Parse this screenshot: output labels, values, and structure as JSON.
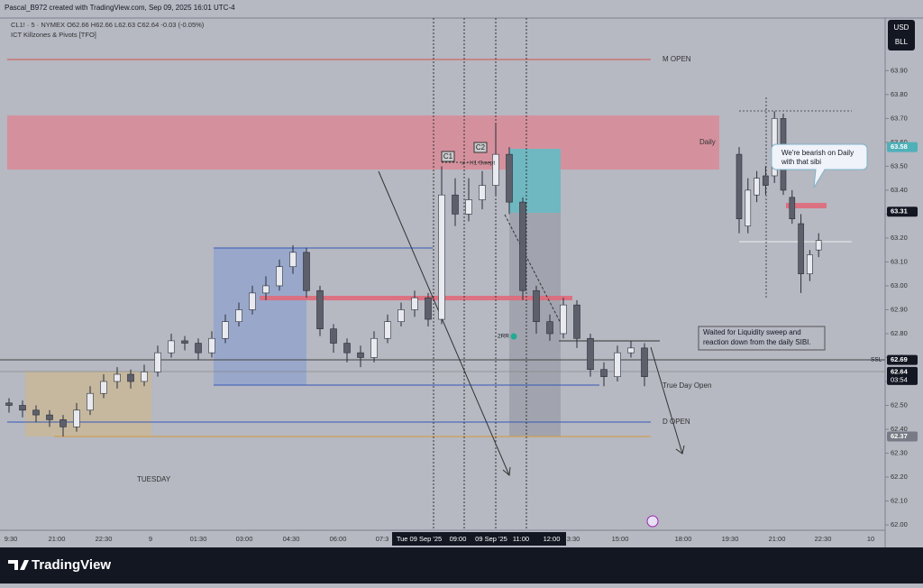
{
  "header": {
    "credit": "Pascal_B972 created with TradingView.com, Sep 09, 2025 16:01 UTC-4",
    "legend": "CL1! · 5 · NYMEX  O62.66 H62.66 L62.63 C62.64 -0.03 (-0.05%)",
    "indicator": "ICT Killzones & Pivots [TFO]"
  },
  "currency": [
    "USD",
    "BLL"
  ],
  "footer": "TradingView",
  "chart_data": {
    "type": "candlestick",
    "ylim": [
      61.97,
      64.12
    ],
    "yticks": [
      {
        "value": 62.0,
        "label": "62.00"
      },
      {
        "value": 62.1,
        "label": "62.10"
      },
      {
        "value": 62.2,
        "label": "62.20"
      },
      {
        "value": 62.3,
        "label": "62.30"
      },
      {
        "value": 62.4,
        "label": "62.40"
      },
      {
        "value": 62.5,
        "label": "62.50"
      },
      {
        "value": 62.6,
        "label": "62.60"
      },
      {
        "value": 62.7,
        "label": "62.70"
      },
      {
        "value": 62.8,
        "label": "62.80"
      },
      {
        "value": 62.9,
        "label": "62.90"
      },
      {
        "value": 63.0,
        "label": "63.00"
      },
      {
        "value": 63.1,
        "label": "63.10"
      },
      {
        "value": 63.2,
        "label": "63.20"
      },
      {
        "value": 63.3,
        "label": "63.30"
      },
      {
        "value": 63.4,
        "label": "63.40"
      },
      {
        "value": 63.5,
        "label": "63.50"
      },
      {
        "value": 63.6,
        "label": "63.60"
      },
      {
        "value": 63.7,
        "label": "63.70"
      },
      {
        "value": 63.8,
        "label": "63.80"
      },
      {
        "value": 63.9,
        "label": "63.90"
      }
    ],
    "x_labels": [
      "9:30",
      "21:00",
      "22:30",
      "9",
      "01:30",
      "03:00",
      "04:30",
      "06:00",
      "07:3",
      "3:30",
      "15:00",
      "18:00",
      "19:30",
      "21:00",
      "22:30",
      "10"
    ],
    "x_cursor": [
      "Tue 09 Sep '25",
      "09:00",
      "09 Sep '25",
      "11:00",
      "12:00"
    ],
    "candles": [
      [
        62.51,
        62.53,
        62.47,
        62.5
      ],
      [
        62.5,
        62.52,
        62.45,
        62.48
      ],
      [
        62.48,
        62.5,
        62.43,
        62.46
      ],
      [
        62.46,
        62.48,
        62.41,
        62.44
      ],
      [
        62.44,
        62.46,
        62.37,
        62.41
      ],
      [
        62.41,
        62.51,
        62.39,
        62.48
      ],
      [
        62.48,
        62.58,
        62.46,
        62.55
      ],
      [
        62.55,
        62.63,
        62.53,
        62.6
      ],
      [
        62.6,
        62.66,
        62.57,
        62.63
      ],
      [
        62.63,
        62.65,
        62.57,
        62.6
      ],
      [
        62.6,
        62.67,
        62.58,
        62.64
      ],
      [
        62.64,
        62.75,
        62.62,
        62.72
      ],
      [
        62.72,
        62.8,
        62.7,
        62.77
      ],
      [
        62.77,
        62.79,
        62.73,
        62.76
      ],
      [
        62.76,
        62.78,
        62.69,
        62.72
      ],
      [
        62.72,
        62.81,
        62.7,
        62.78
      ],
      [
        62.78,
        62.88,
        62.76,
        62.85
      ],
      [
        62.85,
        62.93,
        62.83,
        62.9
      ],
      [
        62.9,
        63.0,
        62.88,
        62.97
      ],
      [
        62.97,
        63.04,
        62.94,
        63.0
      ],
      [
        63.0,
        63.11,
        62.98,
        63.08
      ],
      [
        63.08,
        63.17,
        63.05,
        63.14
      ],
      [
        63.14,
        63.16,
        62.95,
        62.98
      ],
      [
        62.98,
        63.0,
        62.79,
        62.82
      ],
      [
        62.82,
        62.84,
        62.72,
        62.76
      ],
      [
        62.76,
        62.78,
        62.68,
        62.72
      ],
      [
        62.72,
        62.75,
        62.66,
        62.7
      ],
      [
        62.7,
        62.81,
        62.68,
        62.78
      ],
      [
        62.78,
        62.88,
        62.76,
        62.85
      ],
      [
        62.85,
        62.93,
        62.83,
        62.9
      ],
      [
        62.9,
        62.98,
        62.87,
        62.95
      ],
      [
        62.95,
        62.97,
        62.83,
        62.86
      ],
      [
        62.86,
        63.5,
        62.84,
        63.38
      ],
      [
        63.38,
        63.45,
        63.25,
        63.3
      ],
      [
        63.3,
        63.45,
        63.27,
        63.36
      ],
      [
        63.36,
        63.48,
        63.32,
        63.42
      ],
      [
        63.42,
        63.68,
        63.38,
        63.55
      ],
      [
        63.55,
        63.58,
        63.3,
        63.35
      ],
      [
        63.35,
        63.37,
        62.94,
        62.98
      ],
      [
        62.98,
        63.0,
        62.8,
        62.85
      ],
      [
        62.85,
        62.88,
        62.77,
        62.8
      ],
      [
        62.8,
        62.95,
        62.78,
        62.92
      ],
      [
        62.92,
        62.94,
        62.74,
        62.78
      ],
      [
        62.78,
        62.8,
        62.62,
        62.65
      ],
      [
        62.65,
        62.68,
        62.58,
        62.62
      ],
      [
        62.62,
        62.75,
        62.6,
        62.72
      ],
      [
        62.72,
        62.77,
        62.7,
        62.74
      ],
      [
        62.74,
        62.76,
        62.58,
        62.62
      ]
    ],
    "inset_candles": [
      [
        63.55,
        63.58,
        63.22,
        63.28
      ],
      [
        63.25,
        63.45,
        63.22,
        63.4
      ],
      [
        63.38,
        63.48,
        63.35,
        63.45
      ],
      [
        63.46,
        63.5,
        63.38,
        63.42
      ],
      [
        63.46,
        63.73,
        63.43,
        63.7
      ],
      [
        63.7,
        63.72,
        63.38,
        63.4
      ],
      [
        63.37,
        63.4,
        63.26,
        63.28
      ],
      [
        63.26,
        63.3,
        62.97,
        63.05
      ],
      [
        63.05,
        63.15,
        63.02,
        63.13
      ],
      [
        63.15,
        63.22,
        63.12,
        63.19
      ]
    ],
    "up_color": "#e9eaef",
    "down_color": "#5d606b",
    "price_labels": [
      {
        "value": 63.58,
        "color": "#4fb0b8"
      },
      {
        "value": 63.31,
        "color": "#131722"
      },
      {
        "value": 62.69,
        "color": "#131722"
      },
      {
        "value": 62.64,
        "color": "#131722",
        "sub": "03:54"
      },
      {
        "value": 62.37,
        "color": "#787b86"
      }
    ],
    "annotations": {
      "m_open": "M OPEN",
      "daily": "Daily",
      "c1": "C1",
      "c2": "C2",
      "swept": "x - H1 Swept",
      "rr": "2RR",
      "bubble": [
        "We're bearish on Daily",
        "with that sibi"
      ],
      "note": [
        "Waited for Liquidity sweep and",
        "reaction down from the daily SIBI."
      ],
      "ssl": "SSL",
      "true_day_open": "True Day Open",
      "d_open": "D OPEN",
      "tuesday": "TUESDAY"
    }
  }
}
